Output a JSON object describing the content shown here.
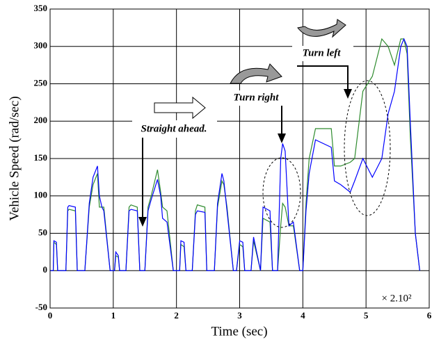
{
  "chart_data": {
    "type": "line",
    "ylabel": "Vehicle Speed (rad/sec)",
    "xlabel": "Time (sec)",
    "annotations": [
      "Straight ahead.",
      "Turn right",
      "Turn left",
      "× 2.10²"
    ],
    "xlim": [
      0,
      6
    ],
    "xticks": [
      0,
      1,
      2,
      3,
      4,
      5,
      6
    ],
    "ylim": [
      -50,
      350
    ],
    "yticks": [
      -50,
      0,
      50,
      100,
      150,
      200,
      250,
      300,
      350
    ],
    "grid": true,
    "x": [
      0,
      0.05,
      0.06,
      0.1,
      0.12,
      0.25,
      0.28,
      0.3,
      0.4,
      0.43,
      0.55,
      0.62,
      0.68,
      0.75,
      0.78,
      0.82,
      0.85,
      0.95,
      1.02,
      1.04,
      1.08,
      1.1,
      1.2,
      1.25,
      1.28,
      1.38,
      1.42,
      1.5,
      1.55,
      1.6,
      1.7,
      1.75,
      1.78,
      1.85,
      1.95,
      2.05,
      2.07,
      2.12,
      2.15,
      2.25,
      2.3,
      2.33,
      2.45,
      2.48,
      2.6,
      2.65,
      2.72,
      2.75,
      2.8,
      2.9,
      2.95,
      3.0,
      3.05,
      3.08,
      3.18,
      3.22,
      3.33,
      3.37,
      3.48,
      3.52,
      3.6,
      3.65,
      3.68,
      3.72,
      3.78,
      3.85,
      3.95,
      4.0,
      4.05,
      4.1,
      4.2,
      4.45,
      4.5,
      4.6,
      4.75,
      4.82,
      4.95,
      5.1,
      5.25,
      5.35,
      5.45,
      5.55,
      5.6,
      5.65,
      5.7,
      5.78,
      5.85
    ],
    "series": [
      {
        "color": "#2e8b2e",
        "values": [
          0,
          0,
          38,
          35,
          0,
          0,
          80,
          82,
          80,
          0,
          0,
          85,
          115,
          130,
          85,
          85,
          85,
          0,
          0,
          20,
          18,
          0,
          0,
          85,
          88,
          85,
          0,
          0,
          85,
          100,
          135,
          105,
          85,
          80,
          0,
          0,
          35,
          32,
          0,
          0,
          80,
          88,
          85,
          0,
          0,
          85,
          120,
          115,
          85,
          0,
          0,
          35,
          32,
          0,
          0,
          40,
          0,
          70,
          65,
          0,
          0,
          60,
          90,
          85,
          60,
          60,
          0,
          0,
          90,
          150,
          190,
          190,
          140,
          140,
          145,
          150,
          240,
          260,
          310,
          300,
          275,
          310,
          310,
          290,
          180,
          50,
          0
        ]
      },
      {
        "color": "#0000ff",
        "values": [
          0,
          0,
          40,
          38,
          0,
          0,
          85,
          87,
          85,
          0,
          0,
          90,
          125,
          140,
          100,
          85,
          80,
          0,
          0,
          25,
          20,
          0,
          0,
          80,
          82,
          80,
          0,
          0,
          80,
          95,
          122,
          100,
          70,
          65,
          0,
          0,
          40,
          38,
          0,
          0,
          75,
          80,
          78,
          0,
          0,
          90,
          130,
          120,
          80,
          0,
          0,
          40,
          38,
          0,
          0,
          45,
          0,
          85,
          80,
          0,
          0,
          150,
          170,
          160,
          60,
          65,
          0,
          0,
          80,
          130,
          175,
          165,
          120,
          115,
          105,
          120,
          150,
          125,
          150,
          210,
          240,
          300,
          310,
          300,
          200,
          50,
          0
        ]
      }
    ]
  }
}
